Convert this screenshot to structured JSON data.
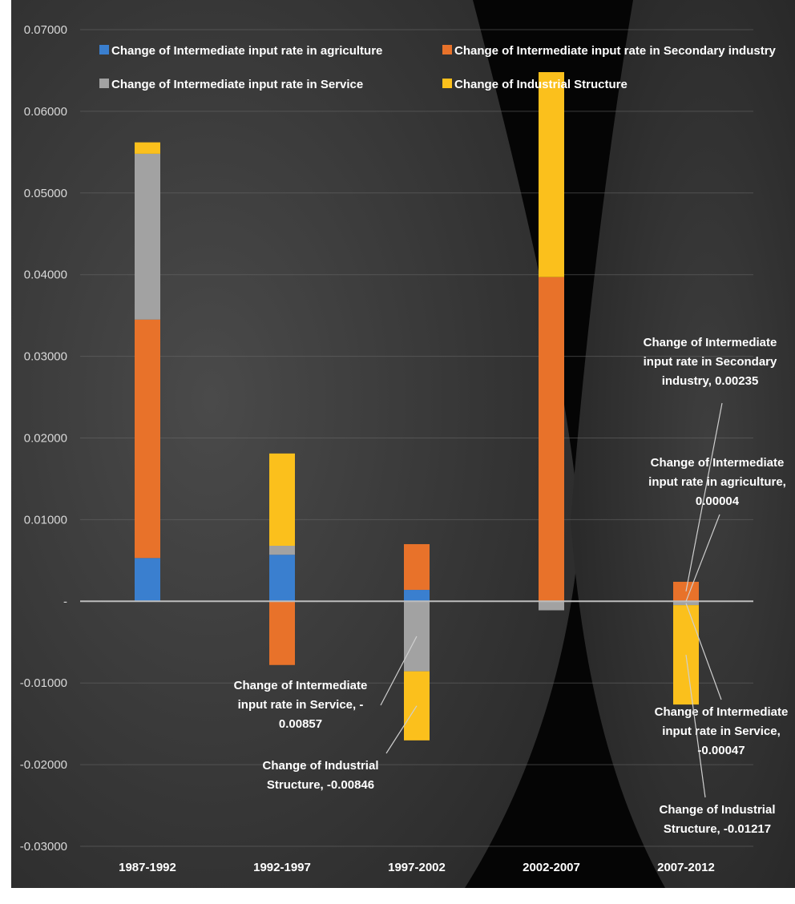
{
  "chart_data": {
    "type": "bar",
    "stacked": true,
    "categories": [
      "1987-1992",
      "1992-1997",
      "1997-2002",
      "2002-2007",
      "2007-2012"
    ],
    "series": [
      {
        "name": "Change of Intermediate input rate in agriculture",
        "color": "#3a7fcf",
        "values": [
          0.0053,
          0.0057,
          0.0014,
          0.0,
          4e-05
        ]
      },
      {
        "name": "Change of Intermediate input rate in Secondary industry",
        "color": "#e8722a",
        "values": [
          0.0292,
          -0.0078,
          0.0056,
          0.0397,
          0.00235
        ]
      },
      {
        "name": "Change of Intermediate input rate in Service",
        "color": "#a2a2a2",
        "values": [
          0.0203,
          0.0011,
          -0.00857,
          -0.0011,
          -0.00047
        ]
      },
      {
        "name": "Change of Industrial Structure",
        "color": "#fbc01c",
        "values": [
          0.0014,
          0.0113,
          -0.00846,
          0.0251,
          -0.01217
        ]
      }
    ],
    "ylim": [
      -0.03,
      0.07
    ],
    "y_ticks": [
      {
        "value": 0.07,
        "label": "0.07000"
      },
      {
        "value": 0.06,
        "label": "0.06000"
      },
      {
        "value": 0.05,
        "label": "0.05000"
      },
      {
        "value": 0.04,
        "label": "0.04000"
      },
      {
        "value": 0.03,
        "label": "0.03000"
      },
      {
        "value": 0.02,
        "label": "0.02000"
      },
      {
        "value": 0.01,
        "label": "0.01000"
      },
      {
        "value": 0.0,
        "label": "-"
      },
      {
        "value": -0.01,
        "label": "-0.01000"
      },
      {
        "value": -0.02,
        "label": "-0.02000"
      },
      {
        "value": -0.03,
        "label": "-0.03000"
      }
    ],
    "grid": true,
    "legend_position": "top",
    "annotations": [
      {
        "category": "1997-2002",
        "series": 2,
        "lines": [
          "Change of Intermediate",
          "input rate in Service,  -",
          "0.00857"
        ]
      },
      {
        "category": "1997-2002",
        "series": 3,
        "lines": [
          "Change of Industrial",
          "Structure,  -0.00846"
        ]
      },
      {
        "category": "2007-2012",
        "series": 1,
        "lines": [
          "Change of Intermediate",
          "input rate in Secondary",
          "industry,  0.00235"
        ]
      },
      {
        "category": "2007-2012",
        "series": 0,
        "lines": [
          "Change of Intermediate",
          "input rate in agriculture,",
          "0.00004"
        ]
      },
      {
        "category": "2007-2012",
        "series": 2,
        "lines": [
          "Change of Intermediate",
          "input rate in Service,",
          "-0.00047"
        ]
      },
      {
        "category": "2007-2012",
        "series": 3,
        "lines": [
          "Change of Industrial",
          "Structure,  -0.01217"
        ]
      }
    ]
  }
}
